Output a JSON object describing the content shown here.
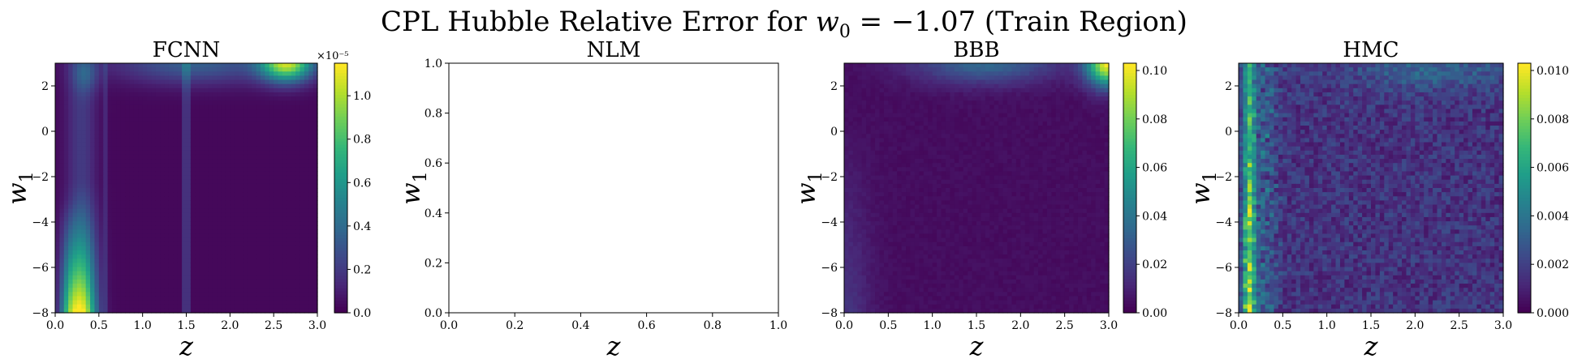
{
  "figure": {
    "title_prefix": "CPL Hubble Relative Error for ",
    "title_math": "w",
    "title_math_sub": "0",
    "title_suffix": " = −1.07 (Train Region)"
  },
  "colormap": [
    "#440154",
    "#482878",
    "#3e4989",
    "#31688e",
    "#26828e",
    "#1f9e89",
    "#35b779",
    "#6ece58",
    "#b5de2b",
    "#fde725"
  ],
  "chart_data": [
    {
      "type": "heatmap",
      "title": "FCNN",
      "xlabel": "z",
      "ylabel_main": "w",
      "ylabel_sub": "1",
      "xlim": [
        0.0,
        3.0
      ],
      "ylim": [
        -8,
        3
      ],
      "xticks": [
        0.0,
        0.5,
        1.0,
        1.5,
        2.0,
        2.5,
        3.0
      ],
      "xticklabels": [
        "0.0",
        "0.5",
        "1.0",
        "1.5",
        "2.0",
        "2.5",
        "3.0"
      ],
      "yticks": [
        2,
        0,
        -2,
        -4,
        -6,
        -8
      ],
      "yticklabels": [
        "2",
        "0",
        "−2",
        "−4",
        "−6",
        "−8"
      ],
      "colorbar": {
        "min": 0.0,
        "max": 1.15,
        "ticks": [
          0.0,
          0.2,
          0.4,
          0.6,
          0.8,
          1.0
        ],
        "ticklabels": [
          "0.0",
          "0.2",
          "0.4",
          "0.6",
          "0.8",
          "1.0"
        ],
        "exponent_label": "×10⁻⁵"
      },
      "pattern": "fcnn",
      "features": [
        {
          "z": 0.3,
          "w1_range": [
            -8,
            -4
          ],
          "value": 1.1
        },
        {
          "z": 2.65,
          "w1_range": [
            2,
            3
          ],
          "value": 0.9
        },
        {
          "z": 1.5,
          "w1_range": [
            -8,
            3
          ],
          "value": 0.15
        }
      ]
    },
    {
      "type": "heatmap",
      "title": "NLM",
      "xlabel": "z",
      "ylabel_main": "w",
      "ylabel_sub": "1",
      "xlim": [
        0.0,
        1.0
      ],
      "ylim": [
        0.0,
        1.0
      ],
      "xticks": [
        0.0,
        0.2,
        0.4,
        0.6,
        0.8,
        1.0
      ],
      "xticklabels": [
        "0.0",
        "0.2",
        "0.4",
        "0.6",
        "0.8",
        "1.0"
      ],
      "yticks": [
        1.0,
        0.8,
        0.6,
        0.4,
        0.2,
        0.0
      ],
      "yticklabels": [
        "1.0",
        "0.8",
        "0.6",
        "0.4",
        "0.2",
        "0.0"
      ],
      "colorbar": null,
      "pattern": "empty",
      "features": []
    },
    {
      "type": "heatmap",
      "title": "BBB",
      "xlabel": "z",
      "ylabel_main": "w",
      "ylabel_sub": "1",
      "xlim": [
        0.0,
        3.0
      ],
      "ylim": [
        -8,
        3
      ],
      "xticks": [
        0.0,
        0.5,
        1.0,
        1.5,
        2.0,
        2.5,
        3.0
      ],
      "xticklabels": [
        "0.0",
        "0.5",
        "1.0",
        "1.5",
        "2.0",
        "2.5",
        "3.0"
      ],
      "yticks": [
        2,
        0,
        -2,
        -4,
        -6,
        -8
      ],
      "yticklabels": [
        "2",
        "0",
        "−2",
        "−4",
        "−6",
        "−8"
      ],
      "colorbar": {
        "min": 0.0,
        "max": 0.103,
        "ticks": [
          0.0,
          0.02,
          0.04,
          0.06,
          0.08,
          0.1
        ],
        "ticklabels": [
          "0.00",
          "0.02",
          "0.04",
          "0.06",
          "0.08",
          "0.10"
        ],
        "exponent_label": ""
      },
      "pattern": "bbb",
      "features": [
        {
          "z": 2.95,
          "w1_range": [
            2,
            3
          ],
          "value": 0.1
        },
        {
          "z": 1.5,
          "w1_range": [
            2,
            3
          ],
          "value": 0.03
        }
      ]
    },
    {
      "type": "heatmap",
      "title": "HMC",
      "xlabel": "z",
      "ylabel_main": "w",
      "ylabel_sub": "1",
      "xlim": [
        0.0,
        3.0
      ],
      "ylim": [
        -8,
        3
      ],
      "xticks": [
        0.0,
        0.5,
        1.0,
        1.5,
        2.0,
        2.5,
        3.0
      ],
      "xticklabels": [
        "0.0",
        "0.5",
        "1.0",
        "1.5",
        "2.0",
        "2.5",
        "3.0"
      ],
      "yticks": [
        2,
        0,
        -2,
        -4,
        -6,
        -8
      ],
      "yticklabels": [
        "2",
        "0",
        "−2",
        "−4",
        "−6",
        "−8"
      ],
      "colorbar": {
        "min": 0.0,
        "max": 0.0103,
        "ticks": [
          0.0,
          0.002,
          0.004,
          0.006,
          0.008,
          0.01
        ],
        "ticklabels": [
          "0.000",
          "0.002",
          "0.004",
          "0.006",
          "0.008",
          "0.010"
        ],
        "exponent_label": ""
      },
      "pattern": "hmc",
      "features": [
        {
          "z": 0.1,
          "w1_range": [
            -8,
            3
          ],
          "value": 0.009
        },
        {
          "z": 2.4,
          "w1_range": [
            2,
            3
          ],
          "value": 0.003
        }
      ]
    }
  ]
}
